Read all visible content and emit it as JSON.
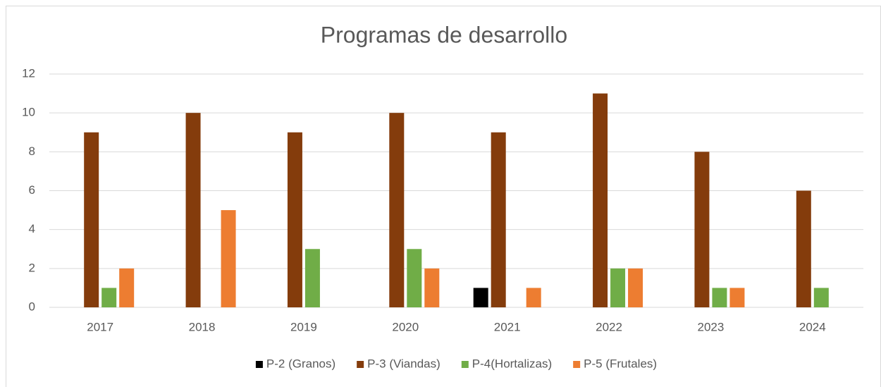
{
  "chart_data": {
    "type": "bar",
    "title": "Programas de desarrollo",
    "categories": [
      "2017",
      "2018",
      "2019",
      "2020",
      "2021",
      "2022",
      "2023",
      "2024"
    ],
    "series": [
      {
        "name": "P-2 (Granos)",
        "color": "#000000",
        "values": [
          0,
          0,
          0,
          0,
          1,
          0,
          0,
          0
        ]
      },
      {
        "name": "P-3 (Viandas)",
        "color": "#843c0c",
        "values": [
          9,
          10,
          9,
          10,
          9,
          11,
          8,
          6
        ]
      },
      {
        "name": "P-4(Hortalizas)",
        "color": "#70ad47",
        "values": [
          1,
          0,
          3,
          3,
          0,
          2,
          1,
          1
        ]
      },
      {
        "name": "P-5 (Frutales)",
        "color": "#ed7d31",
        "values": [
          2,
          5,
          0,
          2,
          1,
          2,
          1,
          0
        ]
      }
    ],
    "ylim": [
      0,
      12
    ],
    "yticks": [
      0,
      2,
      4,
      6,
      8,
      10,
      12
    ],
    "grid": true,
    "legend": "bottom"
  }
}
